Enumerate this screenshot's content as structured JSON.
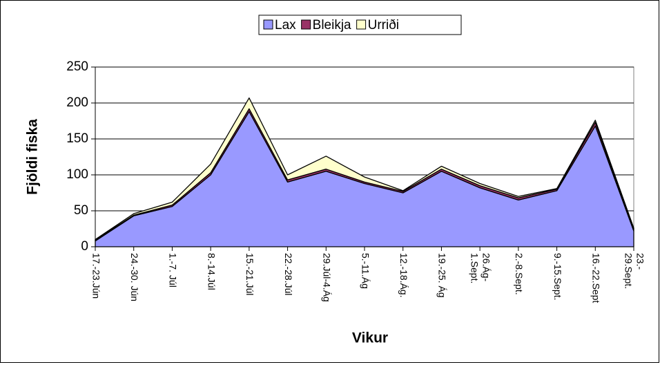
{
  "chart_data": {
    "type": "area",
    "stacked": true,
    "y_label": "Fjöldi fiska",
    "x_label": "Vikur",
    "categories": [
      "17.-23.Jún",
      "24.-30. Jún",
      "1.-7. Júl",
      "8.-14.Júl",
      "15.-21.Júl",
      "22.-28.Júl",
      "29.Júl-4.Ág",
      "5.-11.Ág",
      "12.-18.Ág.",
      "19.-25. Ág",
      "26.Ág-\n1.Sept.",
      "2.-8.Sept.",
      "9.-15.Sept.",
      "16.-22.Sept",
      "23.-\n29.Sept."
    ],
    "series": [
      {
        "name": "Lax",
        "color": "#9999ff",
        "values": [
          8,
          43,
          56,
          100,
          188,
          90,
          105,
          88,
          75,
          105,
          82,
          65,
          78,
          168,
          22
        ]
      },
      {
        "name": "Bleikja",
        "color": "#993366",
        "values": [
          1,
          1,
          2,
          3,
          4,
          3,
          3,
          2,
          2,
          3,
          3,
          3,
          2,
          5,
          2
        ]
      },
      {
        "name": "Urriði",
        "color": "#ffffcc",
        "values": [
          1,
          2,
          4,
          12,
          15,
          7,
          18,
          7,
          1,
          4,
          3,
          2,
          1,
          3,
          2
        ]
      }
    ],
    "ylim": [
      0,
      250
    ],
    "yticks": [
      0,
      50,
      100,
      150,
      200,
      250
    ],
    "grid": true,
    "legend": "top"
  }
}
